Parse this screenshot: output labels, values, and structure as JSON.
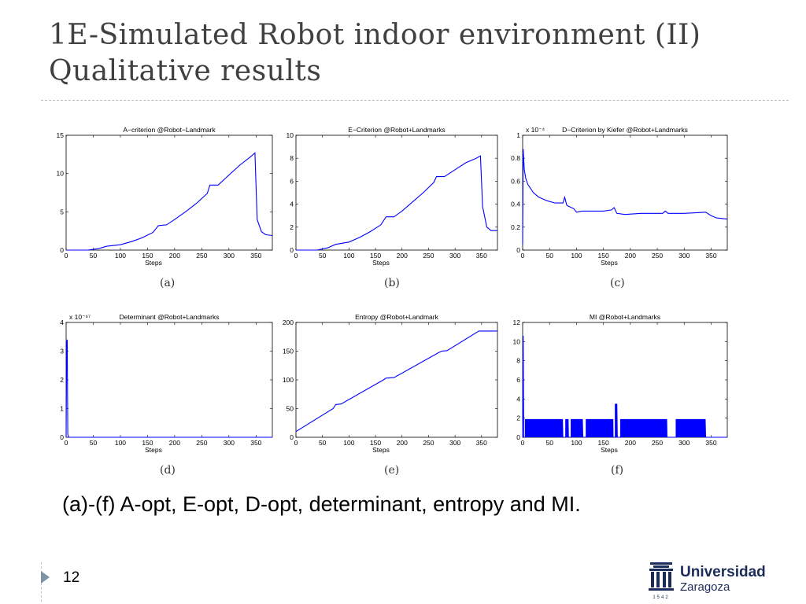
{
  "slide": {
    "title_line1": "1E-Simulated Robot indoor environment (II)",
    "title_line2": "Qualitative results",
    "caption": "(a)-(f) A-opt, E-opt, D-opt, determinant, entropy and MI.",
    "page_number": "12"
  },
  "logo": {
    "name": "Universidad",
    "city": "Zaragoza",
    "year": "1542"
  },
  "colors": {
    "line": "#0000ff",
    "title": "#404040",
    "logo": "#1c2c5a"
  },
  "chart_data": [
    {
      "id": "a",
      "label": "(a)",
      "type": "line",
      "title": "A−criterion @Robot−Landmark",
      "xlabel": "Steps",
      "ylabel": "",
      "xlim": [
        0,
        380
      ],
      "ylim": [
        0,
        15
      ],
      "xticks": [
        0,
        50,
        100,
        150,
        200,
        250,
        300,
        350
      ],
      "yticks": [
        0,
        5,
        10,
        15
      ],
      "exponent": "",
      "series": [
        {
          "values": [
            [
              0,
              0
            ],
            [
              40,
              0
            ],
            [
              60,
              0.2
            ],
            [
              75,
              0.5
            ],
            [
              100,
              0.7
            ],
            [
              120,
              1.1
            ],
            [
              140,
              1.6
            ],
            [
              160,
              2.3
            ],
            [
              170,
              3.2
            ],
            [
              185,
              3.3
            ],
            [
              200,
              4.0
            ],
            [
              220,
              5.0
            ],
            [
              240,
              6.1
            ],
            [
              260,
              7.4
            ],
            [
              265,
              8.5
            ],
            [
              280,
              8.5
            ],
            [
              300,
              9.8
            ],
            [
              320,
              11.1
            ],
            [
              340,
              12.2
            ],
            [
              348,
              12.7
            ],
            [
              352,
              4.0
            ],
            [
              360,
              2.4
            ],
            [
              368,
              2.0
            ],
            [
              380,
              1.9
            ]
          ]
        }
      ]
    },
    {
      "id": "b",
      "label": "(b)",
      "type": "line",
      "title": "E−Criterion @Robot+Landmarks",
      "xlabel": "Steps",
      "ylabel": "",
      "xlim": [
        0,
        380
      ],
      "ylim": [
        0,
        10
      ],
      "xticks": [
        0,
        50,
        100,
        150,
        200,
        250,
        300,
        350
      ],
      "yticks": [
        0,
        2,
        4,
        6,
        8,
        10
      ],
      "exponent": "",
      "series": [
        {
          "values": [
            [
              0,
              0
            ],
            [
              40,
              0
            ],
            [
              60,
              0.2
            ],
            [
              75,
              0.5
            ],
            [
              100,
              0.7
            ],
            [
              120,
              1.1
            ],
            [
              140,
              1.6
            ],
            [
              160,
              2.2
            ],
            [
              170,
              2.9
            ],
            [
              185,
              2.9
            ],
            [
              200,
              3.4
            ],
            [
              220,
              4.2
            ],
            [
              240,
              5.0
            ],
            [
              260,
              5.9
            ],
            [
              265,
              6.4
            ],
            [
              280,
              6.4
            ],
            [
              300,
              7.0
            ],
            [
              320,
              7.6
            ],
            [
              340,
              8.0
            ],
            [
              348,
              8.2
            ],
            [
              352,
              3.8
            ],
            [
              360,
              2.0
            ],
            [
              368,
              1.7
            ],
            [
              380,
              1.7
            ]
          ]
        }
      ]
    },
    {
      "id": "c",
      "label": "(c)",
      "type": "line",
      "title": "D−Criterion by Kiefer @Robot+Landmarks",
      "xlabel": "Steps",
      "ylabel": "",
      "xlim": [
        0,
        380
      ],
      "ylim": [
        0,
        1
      ],
      "xticks": [
        0,
        50,
        100,
        150,
        200,
        250,
        300,
        350
      ],
      "yticks": [
        0,
        0.2,
        0.4,
        0.6,
        0.8,
        1
      ],
      "exponent": "x 10⁻⁴",
      "series": [
        {
          "values": [
            [
              0,
              0.05
            ],
            [
              1,
              0.88
            ],
            [
              3,
              0.7
            ],
            [
              6,
              0.62
            ],
            [
              10,
              0.57
            ],
            [
              20,
              0.5
            ],
            [
              30,
              0.46
            ],
            [
              45,
              0.43
            ],
            [
              60,
              0.41
            ],
            [
              75,
              0.41
            ],
            [
              78,
              0.46
            ],
            [
              82,
              0.39
            ],
            [
              95,
              0.36
            ],
            [
              100,
              0.33
            ],
            [
              110,
              0.34
            ],
            [
              130,
              0.34
            ],
            [
              150,
              0.34
            ],
            [
              165,
              0.35
            ],
            [
              170,
              0.37
            ],
            [
              175,
              0.32
            ],
            [
              190,
              0.31
            ],
            [
              220,
              0.32
            ],
            [
              260,
              0.32
            ],
            [
              265,
              0.34
            ],
            [
              270,
              0.32
            ],
            [
              300,
              0.32
            ],
            [
              340,
              0.33
            ],
            [
              350,
              0.3
            ],
            [
              360,
              0.28
            ],
            [
              380,
              0.27
            ]
          ]
        }
      ]
    },
    {
      "id": "d",
      "label": "(d)",
      "type": "line",
      "title": "Determinant @Robot+Landmarks",
      "xlabel": "Steps",
      "ylabel": "",
      "xlim": [
        0,
        380
      ],
      "ylim": [
        0,
        4
      ],
      "xticks": [
        0,
        50,
        100,
        150,
        200,
        250,
        300,
        350
      ],
      "yticks": [
        0,
        1,
        2,
        3,
        4
      ],
      "exponent": "x 10⁻⁶⁷",
      "series": [
        {
          "values": [
            [
              0,
              0
            ],
            [
              1,
              3.3
            ],
            [
              2,
              3.4
            ],
            [
              3,
              0.1
            ],
            [
              5,
              0
            ],
            [
              380,
              0
            ]
          ]
        }
      ]
    },
    {
      "id": "e",
      "label": "(e)",
      "type": "line",
      "title": "Entropy @Robot+Landmark",
      "xlabel": "Steps",
      "ylabel": "",
      "xlim": [
        0,
        380
      ],
      "ylim": [
        0,
        200
      ],
      "xticks": [
        0,
        50,
        100,
        150,
        200,
        250,
        300,
        350
      ],
      "yticks": [
        0,
        50,
        100,
        150,
        200
      ],
      "exponent": "",
      "series": [
        {
          "values": [
            [
              0,
              10
            ],
            [
              70,
              50
            ],
            [
              75,
              57
            ],
            [
              85,
              58
            ],
            [
              165,
              100
            ],
            [
              170,
              103
            ],
            [
              185,
              104
            ],
            [
              270,
              148
            ],
            [
              275,
              150
            ],
            [
              285,
              151
            ],
            [
              345,
              185
            ],
            [
              380,
              185
            ]
          ]
        }
      ]
    },
    {
      "id": "f",
      "label": "(f)",
      "type": "line",
      "title": "MI @Robot+Landmarks",
      "xlabel": "Steps",
      "ylabel": "",
      "xlim": [
        0,
        380
      ],
      "ylim": [
        0,
        12
      ],
      "xticks": [
        0,
        50,
        100,
        150,
        200,
        250,
        300,
        350
      ],
      "yticks": [
        0,
        2,
        4,
        6,
        8,
        10,
        12
      ],
      "exponent": "",
      "series": [
        {
          "spikes_to": 10.6,
          "bursts": [
            [
              5,
              75,
              1.9
            ],
            [
              80,
              85,
              1.9
            ],
            [
              90,
              112,
              1.9
            ],
            [
              118,
              168,
              1.9
            ],
            [
              172,
              176,
              3.5
            ],
            [
              182,
              268,
              1.9
            ],
            [
              285,
              340,
              1.9
            ]
          ],
          "values": []
        }
      ]
    }
  ]
}
